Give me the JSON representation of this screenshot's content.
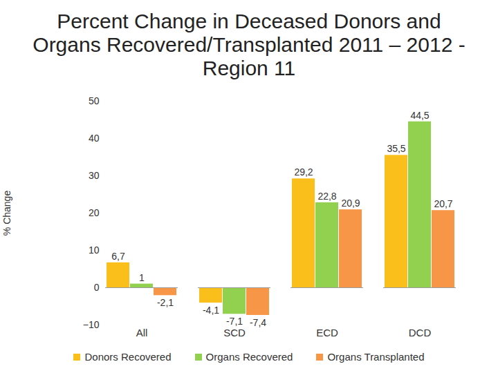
{
  "chart_data": {
    "type": "bar",
    "title": "Percent Change in Deceased Donors and Organs Recovered/Transplanted 2011 – 2012 - Region 11",
    "y_label": "% Change",
    "categories": [
      "All",
      "SCD",
      "ECD",
      "DCD"
    ],
    "series": [
      {
        "name": "Donors Recovered",
        "color": "#fbbf1c",
        "values": [
          6.7,
          -4.1,
          29.2,
          35.5
        ],
        "value_labels": [
          "6,7",
          "-4,1",
          "29,2",
          "35,5"
        ]
      },
      {
        "name": "Organs Recovered",
        "color": "#92d050",
        "values": [
          1,
          -7.1,
          22.8,
          44.5
        ],
        "value_labels": [
          "1",
          "-7,1",
          "22,8",
          "44,5"
        ]
      },
      {
        "name": "Organs Transplanted",
        "color": "#f79646",
        "values": [
          -2.1,
          -7.4,
          20.9,
          20.7
        ],
        "value_labels": [
          "-2,1",
          "-7,4",
          "20,9",
          "20,7"
        ]
      }
    ],
    "ylim": [
      -10,
      50
    ],
    "yticks": [
      -10,
      0,
      10,
      20,
      30,
      40,
      50
    ],
    "grid": false,
    "data_labels": true,
    "legend": "bottom"
  }
}
